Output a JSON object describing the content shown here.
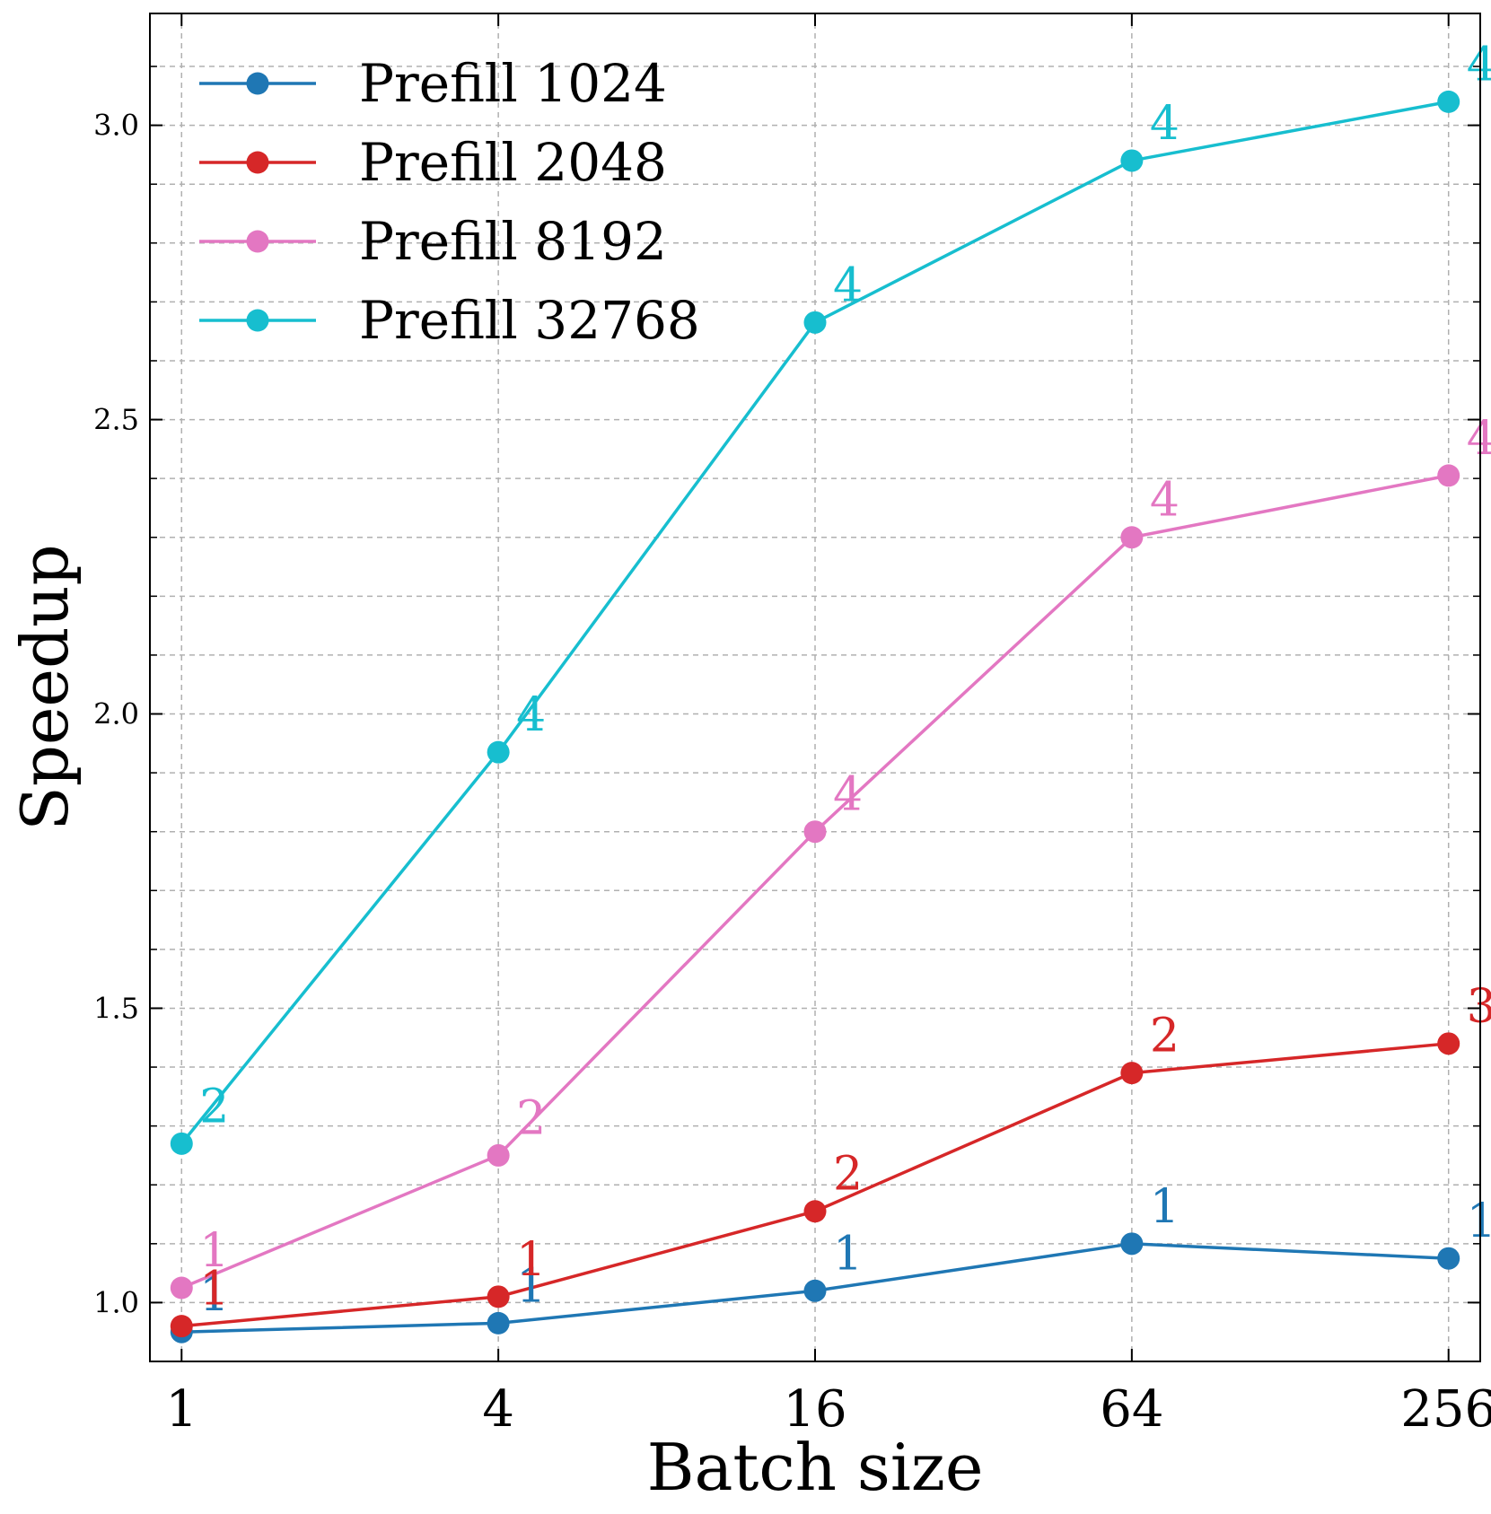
{
  "chart_data": {
    "type": "line",
    "title": "",
    "xlabel": "Batch size",
    "ylabel": "Speedup",
    "x_scale": "log2",
    "x": [
      1,
      4,
      16,
      64,
      256
    ],
    "x_tick_labels": [
      "1",
      "4",
      "16",
      "64",
      "256"
    ],
    "ylim": [
      0.9,
      3.19
    ],
    "y_ticks": [
      1.0,
      1.5,
      2.0,
      2.5,
      3.0
    ],
    "y_tick_labels": [
      "1.0",
      "1.5",
      "2.0",
      "2.5",
      "3.0"
    ],
    "grid": true,
    "legend_position": "top-left",
    "series": [
      {
        "name": "Prefill 1024",
        "color": "#1f77b4",
        "values": [
          0.95,
          0.965,
          1.02,
          1.1,
          1.075
        ],
        "point_labels": [
          "1",
          "1",
          "1",
          "1",
          "1"
        ]
      },
      {
        "name": "Prefill 2048",
        "color": "#d62728",
        "values": [
          0.96,
          1.01,
          1.155,
          1.39,
          1.44
        ],
        "point_labels": [
          "1",
          "1",
          "2",
          "2",
          "3"
        ]
      },
      {
        "name": "Prefill 8192",
        "color": "#e377c2",
        "values": [
          1.025,
          1.25,
          1.8,
          2.3,
          2.405
        ],
        "point_labels": [
          "1",
          "2",
          "4",
          "4",
          "4"
        ]
      },
      {
        "name": "Prefill 32768",
        "color": "#17becf",
        "values": [
          1.27,
          1.935,
          2.665,
          2.94,
          3.04
        ],
        "point_labels": [
          "2",
          "4",
          "4",
          "4",
          "4"
        ]
      }
    ]
  }
}
